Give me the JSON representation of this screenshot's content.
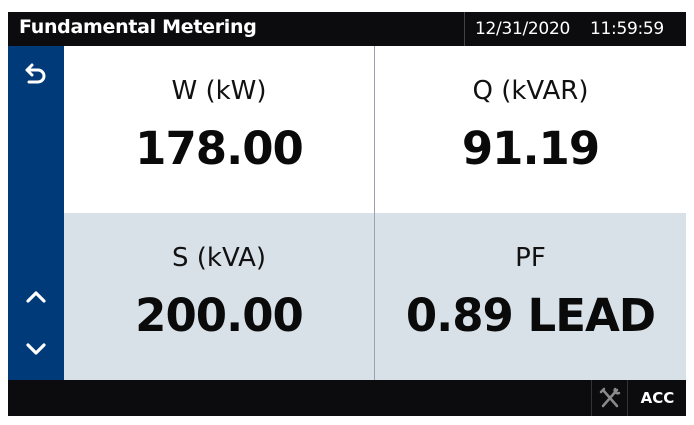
{
  "header": {
    "title": "Fundamental Metering",
    "date": "12/31/2020",
    "time": "11:59:59"
  },
  "sidebar": {
    "icons": [
      "back-icon",
      "chevron-up-icon",
      "chevron-down-icon"
    ],
    "color": "#003a78"
  },
  "cells": [
    {
      "label": "W (kW)",
      "value": "178.00"
    },
    {
      "label": "Q (kVAR)",
      "value": "91.19"
    },
    {
      "label": "S (kVA)",
      "value": "200.00"
    },
    {
      "label": "PF",
      "value": "0.89 LEAD"
    }
  ],
  "footer": {
    "tools_icon": "wrench-screwdriver-icon",
    "acc_label": "ACC"
  }
}
